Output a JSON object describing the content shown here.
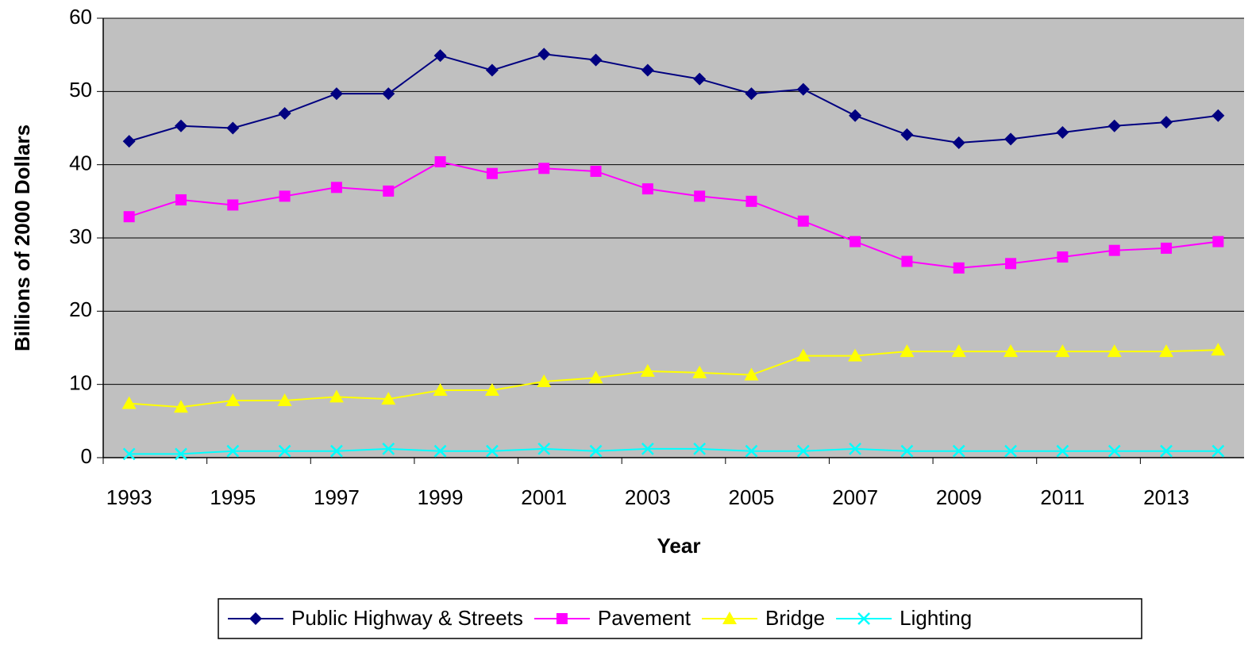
{
  "chart_data": {
    "type": "line",
    "x_label": "Year",
    "y_label": "Billions of 2000 Dollars",
    "categories": [
      "1993",
      null,
      "1995",
      null,
      "1997",
      null,
      "1999",
      null,
      "2001",
      null,
      "2003",
      null,
      "2005",
      null,
      "2007",
      null,
      "2009",
      null,
      "2011",
      null,
      "2013",
      null
    ],
    "series": [
      {
        "name": "Public Highway & Streets",
        "color": "#000080",
        "marker": "diamond",
        "values": [
          43.2,
          45.3,
          45.0,
          47.0,
          49.7,
          49.7,
          54.9,
          52.9,
          55.1,
          54.3,
          52.9,
          51.7,
          49.7,
          50.3,
          46.7,
          44.1,
          43.0,
          43.5,
          44.4,
          45.3,
          45.8,
          46.7
        ]
      },
      {
        "name": "Pavement",
        "color": "#ff00ff",
        "marker": "square",
        "values": [
          32.9,
          35.2,
          34.5,
          35.7,
          36.9,
          36.4,
          40.4,
          38.8,
          39.5,
          39.1,
          36.7,
          35.7,
          35.0,
          32.3,
          29.5,
          26.8,
          25.9,
          26.5,
          27.4,
          28.3,
          28.6,
          29.5
        ]
      },
      {
        "name": "Bridge",
        "color": "#ffff00",
        "marker": "triangle",
        "values": [
          7.4,
          6.9,
          7.8,
          7.8,
          8.3,
          8.0,
          9.2,
          9.2,
          10.4,
          10.9,
          11.8,
          11.6,
          11.3,
          13.9,
          13.9,
          14.5,
          14.5,
          14.5,
          14.5,
          14.5,
          14.5,
          14.7
        ]
      },
      {
        "name": "Lighting",
        "color": "#00ffff",
        "marker": "x",
        "values": [
          0.5,
          0.5,
          0.9,
          0.9,
          0.9,
          1.2,
          0.9,
          0.9,
          1.2,
          0.9,
          1.2,
          1.2,
          0.9,
          0.9,
          1.2,
          0.9,
          0.9,
          0.9,
          0.9,
          0.9,
          0.9,
          0.9
        ]
      }
    ],
    "ylim": [
      0,
      60
    ],
    "yticks": [
      0,
      10,
      20,
      30,
      40,
      50,
      60
    ],
    "grid": true,
    "legend": "bottom",
    "plot_background": "#c0c0c0"
  }
}
